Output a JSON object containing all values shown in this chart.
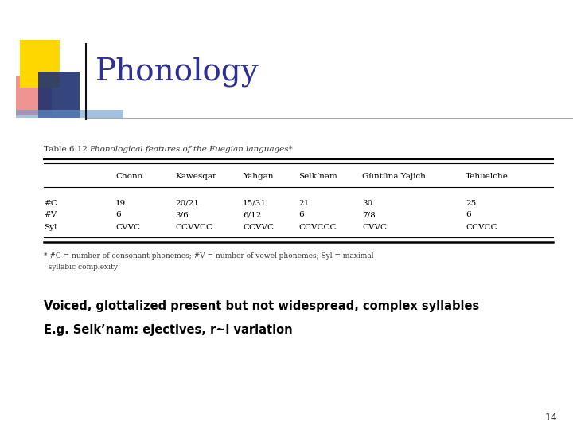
{
  "title": "Phonology",
  "title_color": "#2E3191",
  "background_color": "#FFFFFF",
  "table_caption_normal": "Table 6.12 ",
  "table_caption_italic": "Phonological features of the Fuegian languages",
  "table_caption_asterisk": "*",
  "columns": [
    "",
    "Chono",
    "Kawesqar",
    "Yahgan",
    "Selkʼnam",
    "Güntüna Yajich",
    "Tehuelche"
  ],
  "rows": [
    [
      "#C",
      "19",
      "20/21",
      "15/31",
      "21",
      "30",
      "25"
    ],
    [
      "#V",
      "6",
      "3/6",
      "6/12",
      "6",
      "7/8",
      "6"
    ],
    [
      "Syl",
      "CVVC",
      "CCVVCC",
      "CCVVC",
      "CCVCCC",
      "CVVC",
      "CCVCC"
    ]
  ],
  "footnote_line1": "* #C = number of consonant phonemes; #V = number of vowel phonemes; Syl = maximal",
  "footnote_line2": "  syllabic complexity",
  "bullet1": "Voiced, glottalized present but not widespread, complex syllables",
  "bullet2": "E.g. Selkʼnam: ejectives, r~l variation",
  "page_number": "14",
  "logo": {
    "yellow": "#FFD700",
    "pink": "#F08080",
    "blue_dark": "#1F3270",
    "blue_light": "#6699CC"
  }
}
